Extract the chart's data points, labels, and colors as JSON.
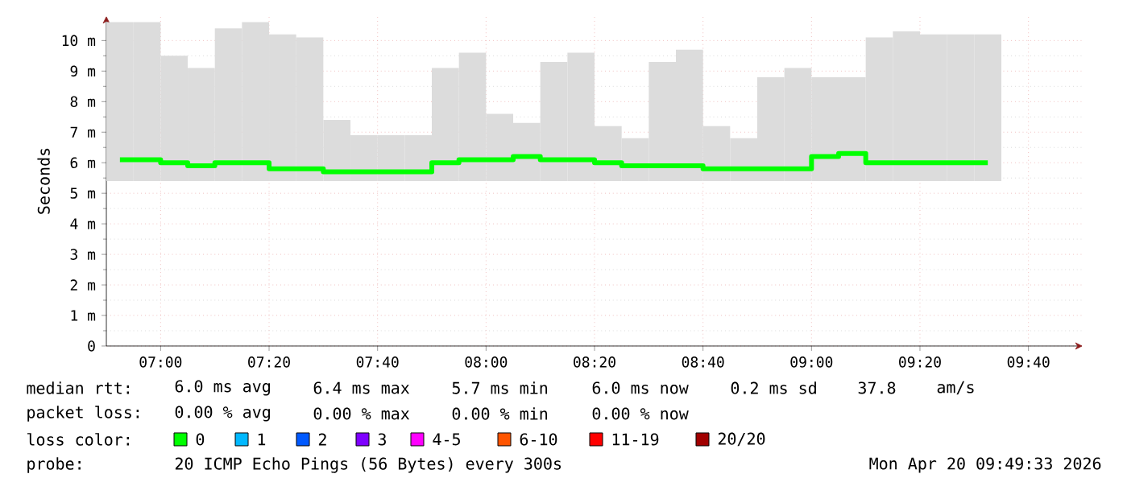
{
  "chart_data": {
    "type": "bar",
    "ylabel": "Seconds",
    "x": [
      6.875,
      6.9583,
      7.0417,
      7.125,
      7.2083,
      7.2917,
      7.375,
      7.4583,
      7.5417,
      7.625,
      7.7083,
      7.7917,
      7.875,
      7.9583,
      8.0417,
      8.125,
      8.2083,
      8.2917,
      8.375,
      8.4583,
      8.5417,
      8.625,
      8.7083,
      8.7917,
      8.875,
      8.9583,
      9.0417,
      9.125,
      9.2083,
      9.2917,
      9.375,
      9.4583,
      9.5417
    ],
    "series": [
      {
        "color": "#dcdcdc",
        "base": [
          5.4,
          5.4,
          5.4,
          5.4,
          5.4,
          5.4,
          5.4,
          5.4,
          5.4,
          5.4,
          5.4,
          5.4,
          5.4,
          5.4,
          5.4,
          5.4,
          5.4,
          5.4,
          5.4,
          5.4,
          5.4,
          5.4,
          5.4,
          5.4,
          5.4,
          5.4,
          5.4,
          5.4,
          5.4,
          5.4,
          5.4,
          5.4,
          5.4
        ],
        "values": [
          5.2,
          5.2,
          4.1,
          3.7,
          5.0,
          5.2,
          4.8,
          4.7,
          2.0,
          1.5,
          1.5,
          1.5,
          3.7,
          4.2,
          2.2,
          1.9,
          3.9,
          4.2,
          1.8,
          1.4,
          3.9,
          4.3,
          1.8,
          1.4,
          3.4,
          3.7,
          3.4,
          3.4,
          4.7,
          4.9,
          4.8,
          4.8,
          4.8
        ]
      },
      {
        "type": "step",
        "name": "0",
        "color": "#00ff00",
        "values": [
          6.1,
          6.1,
          6.0,
          5.9,
          6.0,
          6.0,
          5.8,
          5.8,
          5.7,
          5.7,
          5.7,
          5.7,
          6.0,
          6.1,
          6.1,
          6.2,
          6.1,
          6.1,
          6.0,
          5.9,
          5.9,
          5.9,
          5.8,
          5.8,
          5.8,
          5.8,
          6.2,
          6.3,
          6.0,
          6.0,
          6.0,
          6.0,
          6.0
        ]
      },
      {
        "type": "step",
        "name": "1",
        "color": "#00b8ff",
        "values": [
          null,
          null,
          null,
          null,
          null,
          null,
          null,
          null,
          null,
          null,
          null,
          null,
          null,
          null,
          null,
          null,
          null,
          null,
          null,
          null,
          null,
          null,
          null,
          null,
          null,
          null,
          null,
          null,
          null,
          null,
          null,
          null,
          null
        ]
      },
      {
        "type": "step",
        "name": "2",
        "color": "#0059ff",
        "values": [
          null,
          null,
          null,
          null,
          null,
          null,
          null,
          null,
          null,
          null,
          null,
          null,
          null,
          null,
          null,
          null,
          null,
          null,
          null,
          null,
          null,
          null,
          null,
          null,
          null,
          null,
          null,
          null,
          null,
          null,
          null,
          null,
          null
        ]
      },
      {
        "type": "step",
        "name": "3",
        "color": "#7e00ff",
        "values": [
          null,
          null,
          null,
          null,
          null,
          null,
          null,
          null,
          null,
          null,
          null,
          null,
          null,
          null,
          null,
          null,
          null,
          null,
          null,
          null,
          null,
          null,
          null,
          null,
          null,
          null,
          null,
          null,
          null,
          null,
          null,
          null,
          null
        ]
      },
      {
        "type": "step",
        "name": "4-5",
        "color": "#ff00ff",
        "values": [
          null,
          null,
          null,
          null,
          null,
          null,
          null,
          null,
          null,
          null,
          null,
          null,
          null,
          null,
          null,
          null,
          null,
          null,
          null,
          null,
          null,
          null,
          null,
          null,
          null,
          null,
          null,
          null,
          null,
          null,
          null,
          null,
          null
        ]
      },
      {
        "type": "step",
        "name": "6-10",
        "color": "#ff5500",
        "values": [
          null,
          null,
          null,
          null,
          null,
          null,
          null,
          null,
          null,
          null,
          null,
          null,
          null,
          null,
          null,
          null,
          null,
          null,
          null,
          null,
          null,
          null,
          null,
          null,
          null,
          null,
          null,
          null,
          null,
          null,
          null,
          null,
          null
        ]
      },
      {
        "type": "step",
        "name": "11-19",
        "color": "#ff0000",
        "values": [
          null,
          null,
          null,
          null,
          null,
          null,
          null,
          null,
          null,
          null,
          null,
          null,
          null,
          null,
          null,
          null,
          null,
          null,
          null,
          null,
          null,
          null,
          null,
          null,
          null,
          null,
          null,
          null,
          null,
          null,
          null,
          null,
          null
        ]
      },
      {
        "type": "step",
        "name": "20/20",
        "color": "#a10000",
        "values": [
          null,
          null,
          null,
          null,
          null,
          null,
          null,
          null,
          null,
          null,
          null,
          null,
          null,
          null,
          null,
          null,
          null,
          null,
          null,
          null,
          null,
          null,
          null,
          null,
          null,
          null,
          null,
          null,
          null,
          null,
          null,
          null,
          null
        ]
      }
    ],
    "xlim": [
      6.8333,
      9.8333
    ],
    "xticks": [
      {
        "value": 7,
        "label": "07:00"
      },
      {
        "value": 7.3333,
        "label": "07:20"
      },
      {
        "value": 7.6667,
        "label": "07:40"
      },
      {
        "value": 8,
        "label": "08:00"
      },
      {
        "value": 8.3333,
        "label": "08:20"
      },
      {
        "value": 8.6667,
        "label": "08:40"
      },
      {
        "value": 9,
        "label": "09:00"
      },
      {
        "value": 9.3333,
        "label": "09:20"
      },
      {
        "value": 9.6667,
        "label": "09:40"
      }
    ],
    "ylim": [
      0,
      10.8
    ],
    "yticks": [
      0,
      {
        "value": 1,
        "label": "1 m"
      },
      {
        "value": 2,
        "label": "2 m"
      },
      {
        "value": 3,
        "label": "3 m"
      },
      {
        "value": 4,
        "label": "4 m"
      },
      {
        "value": 5,
        "label": "5 m"
      },
      {
        "value": 6,
        "label": "6 m"
      },
      {
        "value": 7,
        "label": "7 m"
      },
      {
        "value": 8,
        "label": "8 m"
      },
      {
        "value": 9,
        "label": "9 m"
      },
      {
        "value": 10,
        "label": "10 m"
      }
    ],
    "grid": true,
    "legend": "bottom",
    "legend_title": "loss color:",
    "annotations": [
      "median rtt:",
      "6.0 ms avg",
      "6.4 ms max",
      "5.7 ms min",
      "6.0 ms now",
      "0.2 ms sd",
      "37.8",
      "am/s",
      "packet loss:",
      "0.00 % avg",
      "0.00 % max",
      "0.00 % min",
      "0.00 % now",
      "probe:",
      "20 ICMP Echo Pings (56 Bytes) every 300s",
      "Mon Apr 20 09:49:33 2026"
    ]
  }
}
